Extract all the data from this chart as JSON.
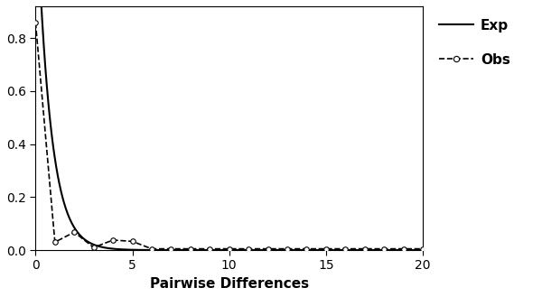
{
  "xlabel": "Pairwise Differences",
  "ylabel": "",
  "xlim": [
    0,
    20
  ],
  "ylim": [
    0,
    0.92
  ],
  "yticks": [
    0.0,
    0.2,
    0.4,
    0.6,
    0.8
  ],
  "xticks": [
    0,
    5,
    10,
    15,
    20
  ],
  "legend_labels": [
    "Exp",
    "Obs"
  ],
  "exp_color": "#000000",
  "obs_color": "#000000",
  "background_color": "#ffffff",
  "obs_x": [
    0,
    1,
    2,
    3,
    4,
    5,
    6,
    7,
    8,
    9,
    10,
    11,
    12,
    13,
    14,
    15,
    16,
    17,
    18,
    19,
    20
  ],
  "obs_y": [
    0.858,
    0.03,
    0.068,
    0.01,
    0.038,
    0.033,
    0.005,
    0.005,
    0.005,
    0.005,
    0.005,
    0.005,
    0.005,
    0.005,
    0.005,
    0.005,
    0.005,
    0.005,
    0.005,
    0.005,
    0.005
  ],
  "exp_rate": 1.4,
  "xlabel_fontsize": 11,
  "tick_fontsize": 10,
  "legend_fontsize": 11,
  "legend_fontweight": "bold",
  "figsize": [
    6.0,
    3.29
  ],
  "dpi": 100
}
